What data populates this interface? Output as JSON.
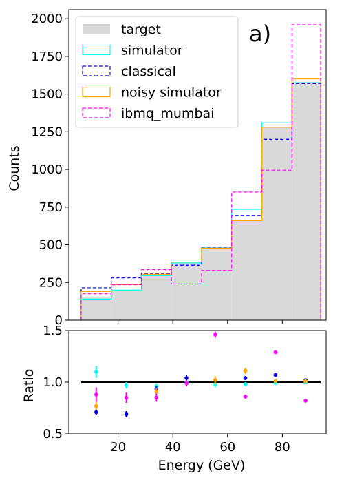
{
  "chart_data": [
    {
      "type": "histogram-step",
      "panel_label": "a)",
      "ylabel": "Counts",
      "xlabel": "",
      "xlim": [
        2,
        96
      ],
      "ylim": [
        0,
        2060
      ],
      "yticks": [
        0,
        250,
        500,
        750,
        1000,
        1250,
        1500,
        1750,
        2000
      ],
      "grid": false,
      "legend_position": "top-left",
      "bin_edges": [
        6.5,
        17.5,
        28.5,
        39.5,
        50.5,
        61.5,
        72.5,
        83.5,
        94.0
      ],
      "series": [
        {
          "name": "target",
          "style": "fill",
          "color": "#d9d9d9",
          "values": [
            150,
            200,
            300,
            380,
            470,
            660,
            1280,
            1580
          ]
        },
        {
          "name": "simulator",
          "style": "solid",
          "color": "#00ffff",
          "values": [
            140,
            200,
            295,
            380,
            485,
            735,
            1310,
            1575
          ]
        },
        {
          "name": "classical",
          "style": "dashed",
          "color": "#0000ee",
          "values": [
            215,
            280,
            310,
            365,
            480,
            695,
            1200,
            1570
          ]
        },
        {
          "name": "noisy simulator",
          "style": "solid",
          "color": "#ffa500",
          "values": [
            190,
            235,
            305,
            385,
            478,
            660,
            1280,
            1600
          ]
        },
        {
          "name": "ibmq_mumbai",
          "style": "dashed",
          "color": "#ff00ff",
          "values": [
            175,
            235,
            335,
            240,
            330,
            850,
            995,
            1960
          ]
        }
      ]
    },
    {
      "type": "scatter-errorbar",
      "ylabel": "Ratio",
      "xlabel": "Energy (GeV)",
      "xlim": [
        2,
        96
      ],
      "ylim": [
        0.5,
        1.5
      ],
      "yticks": [
        "0.5",
        "1.0",
        "1.5"
      ],
      "xticks": [
        20,
        40,
        60,
        80
      ],
      "reference_line": {
        "y": 1.0,
        "x_range": [
          6.5,
          94.0
        ],
        "color": "#000000"
      },
      "series": [
        {
          "name": "simulator",
          "color": "#00ffff",
          "offset": 0,
          "points": [
            [
              12,
              1.1,
              0.06
            ],
            [
              23,
              0.97,
              0.03
            ],
            [
              34,
              0.96,
              0.03
            ],
            [
              45,
              1.0,
              0.02
            ],
            [
              55.5,
              0.98,
              0.03
            ],
            [
              66.5,
              0.98,
              0.02
            ],
            [
              77.5,
              0.99,
              0.01
            ],
            [
              88.5,
              1.0,
              0.01
            ]
          ]
        },
        {
          "name": "classical",
          "color": "#0000ee",
          "offset": 0,
          "points": [
            [
              12,
              0.71,
              0.03
            ],
            [
              23,
              0.69,
              0.03
            ],
            [
              34,
              0.93,
              0.03
            ],
            [
              45,
              1.04,
              0.03
            ],
            [
              55.5,
              1.02,
              0.02
            ],
            [
              66.5,
              1.04,
              0.02
            ],
            [
              77.5,
              1.07,
              0.01
            ],
            [
              88.5,
              1.02,
              0.01
            ]
          ]
        },
        {
          "name": "noisy simulator",
          "color": "#ffa500",
          "offset": 0,
          "points": [
            [
              12,
              0.77,
              0.04
            ],
            [
              23,
              0.85,
              0.03
            ],
            [
              34,
              0.91,
              0.03
            ],
            [
              45,
              0.99,
              0.03
            ],
            [
              55.5,
              1.02,
              0.04
            ],
            [
              66.5,
              1.11,
              0.03
            ],
            [
              77.5,
              1.01,
              0.01
            ],
            [
              88.5,
              1.01,
              0.01
            ]
          ]
        },
        {
          "name": "ibmq_mumbai",
          "color": "#ff00ff",
          "offset": 0,
          "points": [
            [
              12,
              0.88,
              0.07
            ],
            [
              23,
              0.85,
              0.05
            ],
            [
              34,
              0.85,
              0.04
            ],
            [
              45,
              0.99,
              0.03
            ],
            [
              55.5,
              1.46,
              0.03
            ],
            [
              66.5,
              0.86,
              0.02
            ],
            [
              77.5,
              1.29,
              0.01
            ],
            [
              88.5,
              0.82,
              0.01
            ]
          ]
        }
      ]
    }
  ]
}
